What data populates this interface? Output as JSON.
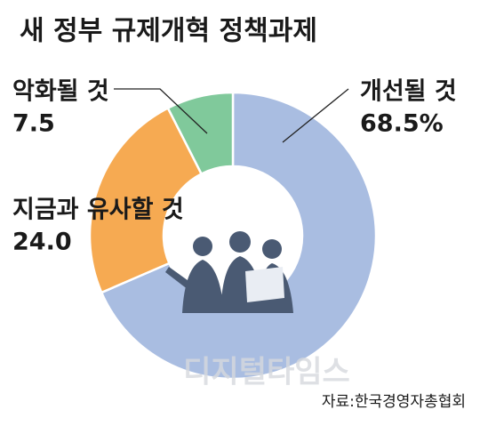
{
  "chart_data": {
    "type": "donut",
    "title": "새 정부 규제개혁 정책과제",
    "categories": [
      "개선될 것",
      "지금과 유사할 것",
      "악화될 것"
    ],
    "values": [
      68.5,
      24.0,
      7.5
    ],
    "value_labels": [
      "68.5%",
      "24.0",
      "7.5"
    ],
    "colors": [
      "#a9bde1",
      "#f6aa52",
      "#80c99b"
    ],
    "source": "자료:한국경영자총협회",
    "watermark": "디지털타임스"
  }
}
